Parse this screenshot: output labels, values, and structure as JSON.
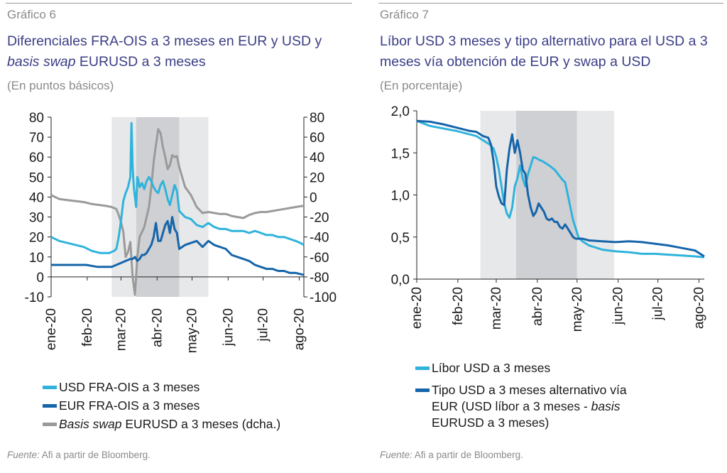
{
  "chart_data": [
    {
      "type": "line",
      "label": "Gráfico 6",
      "title_part1": "Diferenciales FRA-OIS a 3 meses en EUR y USD y",
      "title_part2_italic": "basis swap",
      "title_part2": " EURUSD a 3 meses",
      "subtitle": "(En puntos básicos)",
      "x_ticks": [
        "ene-20",
        "feb-20",
        "mar-20",
        "abr-20",
        "may-20",
        "jun-20",
        "jul-20",
        "ago-20"
      ],
      "y_left_ticks": [
        "80",
        "70",
        "60",
        "50",
        "40",
        "30",
        "20",
        "10",
        "0",
        "-10"
      ],
      "y_right_ticks": [
        "80",
        "60",
        "40",
        "20",
        "0",
        "-20",
        "-40",
        "-60",
        "-80",
        "-100"
      ],
      "ylim_left": [
        -10,
        80
      ],
      "ylim_right": [
        -100,
        80
      ],
      "xlim_days": [
        0,
        217
      ],
      "shaded_periods": [
        {
          "start_day": 52,
          "end_day": 73,
          "color": "#e7e8e9"
        },
        {
          "start_day": 73,
          "end_day": 110,
          "color": "#cfd0d3"
        },
        {
          "start_day": 110,
          "end_day": 135,
          "color": "#e7e8e9"
        }
      ],
      "series": [
        {
          "name": "USD FRA-OIS a 3 meses",
          "color": "#2fb3dc",
          "axis": "left",
          "x": [
            0,
            7,
            14,
            21,
            28,
            35,
            42,
            46,
            50,
            54,
            56,
            58,
            60,
            62,
            64,
            66,
            68,
            69,
            70,
            71,
            72,
            73,
            74,
            75,
            76,
            78,
            80,
            82,
            84,
            86,
            88,
            90,
            92,
            94,
            96,
            98,
            100,
            102,
            104,
            106,
            108,
            110,
            115,
            120,
            125,
            130,
            135,
            140,
            145,
            150,
            155,
            160,
            165,
            170,
            175,
            180,
            185,
            190,
            195,
            200,
            205,
            210,
            214,
            217
          ],
          "values": [
            20,
            18,
            17,
            16,
            15,
            13,
            12,
            12,
            12,
            13,
            14,
            20,
            28,
            38,
            42,
            45,
            50,
            77,
            55,
            45,
            40,
            35,
            50,
            48,
            45,
            47,
            44,
            48,
            50,
            48,
            45,
            43,
            42,
            46,
            48,
            44,
            39,
            36,
            41,
            46,
            43,
            33,
            30,
            29,
            26,
            25,
            27,
            25,
            24,
            24,
            23,
            23,
            23,
            22,
            23,
            22,
            21,
            21,
            20,
            20,
            19,
            18,
            17,
            16
          ]
        },
        {
          "name": "EUR FRA-OIS a 3 meses",
          "color": "#1565aa",
          "axis": "left",
          "x": [
            0,
            10,
            20,
            30,
            40,
            48,
            52,
            56,
            60,
            64,
            68,
            70,
            72,
            74,
            76,
            78,
            80,
            82,
            84,
            86,
            88,
            90,
            92,
            94,
            96,
            98,
            100,
            102,
            104,
            106,
            108,
            110,
            115,
            120,
            125,
            130,
            135,
            140,
            145,
            150,
            155,
            160,
            165,
            170,
            175,
            180,
            185,
            190,
            195,
            200,
            205,
            210,
            217
          ],
          "values": [
            6,
            6,
            6,
            6,
            5,
            5,
            5,
            6,
            7,
            8,
            9,
            9,
            10,
            8,
            9,
            11,
            11,
            12,
            14,
            16,
            20,
            27,
            18,
            18,
            22,
            26,
            28,
            22,
            30,
            24,
            22,
            14,
            16,
            17,
            18,
            15,
            18,
            16,
            15,
            14,
            11,
            10,
            9,
            8,
            6,
            5,
            4,
            4,
            3,
            3,
            2,
            2,
            1
          ]
        },
        {
          "name": "Basis swap EURUSD a 3 meses (dcha.)",
          "name_italic": "Basis swap",
          "name_rest": " EURUSD a 3 meses (dcha.)",
          "color": "#9a9a9a",
          "axis": "right",
          "x": [
            0,
            7,
            14,
            21,
            28,
            35,
            42,
            48,
            52,
            56,
            58,
            60,
            62,
            64,
            66,
            68,
            70,
            72,
            74,
            76,
            78,
            80,
            82,
            84,
            86,
            88,
            90,
            92,
            94,
            96,
            98,
            100,
            102,
            104,
            106,
            108,
            110,
            115,
            120,
            125,
            130,
            135,
            140,
            145,
            150,
            155,
            160,
            165,
            170,
            175,
            180,
            185,
            190,
            195,
            200,
            205,
            210,
            215,
            217
          ],
          "values": [
            2,
            -2,
            -3,
            -4,
            -5,
            -7,
            -8,
            -9,
            -10,
            -12,
            -18,
            -25,
            -35,
            -60,
            -55,
            -45,
            -80,
            -98,
            -60,
            -40,
            -35,
            -30,
            -20,
            -10,
            10,
            35,
            52,
            68,
            64,
            50,
            40,
            28,
            32,
            42,
            40,
            41,
            30,
            10,
            2,
            -10,
            -16,
            -15,
            -16,
            -17,
            -17,
            -19,
            -20,
            -21,
            -18,
            -16,
            -15,
            -15,
            -14,
            -13,
            -12,
            -11,
            -10,
            -9,
            -9
          ]
        }
      ],
      "source_label": "Fuente:",
      "source_text": " Afi a partir de Bloomberg."
    },
    {
      "type": "line",
      "label": "Gráfico 7",
      "title_line1": "Líbor USD 3 meses y tipo alternativo para el USD a 3",
      "title_line2": "meses vía obtención de EUR y swap a USD",
      "subtitle": "(En porcentaje)",
      "x_ticks": [
        "ene-20",
        "feb-20",
        "mar-20",
        "abr-20",
        "may-20",
        "jun-20",
        "jul-20",
        "ago-20"
      ],
      "y_ticks": [
        "2,0",
        "1,5",
        "1,0",
        "0,5",
        "0,0"
      ],
      "ylim": [
        0,
        2.0
      ],
      "xlim_days": [
        0,
        217
      ],
      "shaded_periods": [
        {
          "start_day": 48,
          "end_day": 75,
          "color": "#e7e8e9"
        },
        {
          "start_day": 75,
          "end_day": 121,
          "color": "#cfd0d3"
        },
        {
          "start_day": 121,
          "end_day": 149,
          "color": "#e7e8e9"
        }
      ],
      "series": [
        {
          "name": "Líbor USD a 3 meses",
          "color": "#2fb3dc",
          "x": [
            0,
            5,
            10,
            20,
            30,
            40,
            45,
            50,
            55,
            58,
            60,
            62,
            64,
            66,
            68,
            70,
            72,
            74,
            76,
            78,
            80,
            82,
            84,
            86,
            88,
            90,
            92,
            95,
            100,
            104,
            108,
            110,
            112,
            114,
            116,
            118,
            120,
            122,
            125,
            130,
            140,
            150,
            160,
            170,
            180,
            190,
            200,
            210,
            217
          ],
          "values": [
            1.88,
            1.85,
            1.82,
            1.79,
            1.76,
            1.72,
            1.7,
            1.65,
            1.6,
            1.55,
            1.45,
            1.3,
            1.1,
            0.9,
            0.78,
            0.73,
            0.85,
            1.1,
            1.2,
            1.35,
            1.2,
            1.1,
            1.25,
            1.35,
            1.45,
            1.44,
            1.42,
            1.4,
            1.35,
            1.3,
            1.22,
            1.18,
            1.15,
            1.0,
            0.85,
            0.7,
            0.6,
            0.5,
            0.45,
            0.4,
            0.35,
            0.33,
            0.32,
            0.3,
            0.3,
            0.29,
            0.28,
            0.27,
            0.26
          ]
        },
        {
          "name": "Tipo USD a 3 meses alternativo vía EUR (USD líbor a 3 meses - basis EURUSD a 3 meses)",
          "color": "#1565aa",
          "x": [
            0,
            10,
            20,
            30,
            40,
            45,
            50,
            54,
            56,
            58,
            60,
            62,
            64,
            66,
            68,
            70,
            72,
            74,
            76,
            78,
            80,
            82,
            84,
            86,
            88,
            90,
            92,
            94,
            96,
            98,
            100,
            102,
            104,
            106,
            108,
            110,
            112,
            114,
            116,
            118,
            120,
            125,
            130,
            140,
            150,
            160,
            170,
            180,
            190,
            200,
            210,
            217
          ],
          "values": [
            1.88,
            1.87,
            1.84,
            1.8,
            1.76,
            1.75,
            1.7,
            1.68,
            1.6,
            1.4,
            1.1,
            0.98,
            0.9,
            0.88,
            1.3,
            1.55,
            1.72,
            1.5,
            1.65,
            1.5,
            1.3,
            1.25,
            1.0,
            0.85,
            0.75,
            0.8,
            0.9,
            0.85,
            0.8,
            0.72,
            0.7,
            0.72,
            0.68,
            0.68,
            0.62,
            0.6,
            0.65,
            0.6,
            0.55,
            0.5,
            0.48,
            0.48,
            0.46,
            0.45,
            0.44,
            0.45,
            0.44,
            0.42,
            0.4,
            0.37,
            0.34,
            0.27
          ]
        }
      ],
      "source_label": "Fuente:",
      "source_text": " Afi a partir de Bloomberg."
    }
  ],
  "legend7_item2_line1": "Tipo USD a 3 meses alternativo vía",
  "legend7_item2_line2_a": "EUR (USD líbor a 3 meses - ",
  "legend7_item2_line2_italic": "basis",
  "legend7_item2_line3": "EURUSD a 3 meses)"
}
